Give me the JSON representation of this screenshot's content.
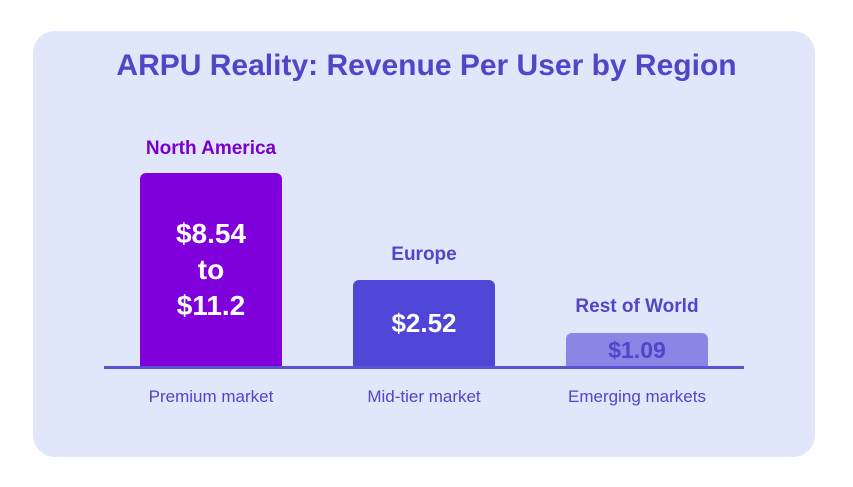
{
  "chart_data": {
    "type": "bar",
    "title": "ARPU Reality: Revenue Per User by Region",
    "categories": [
      "North America",
      "Europe",
      "Rest of World"
    ],
    "values": [
      11.2,
      2.52,
      1.09
    ],
    "ranges": [
      [
        8.54,
        11.2
      ],
      null,
      null
    ],
    "value_labels": {
      "na_line1": "$8.54",
      "na_line2": "to",
      "na_line3": "$11.2",
      "eu": "$2.52",
      "row": "$1.09"
    },
    "tiers": [
      "Premium market",
      "Mid-tier market",
      "Emerging markets"
    ],
    "grid": false,
    "legend": "none"
  },
  "colors": {
    "card_bg": "#e0e7fb",
    "title": "#4f46c8",
    "north_america": "#8000dc",
    "europe": "#4f46d8",
    "rest_of_world": "#8a86e6"
  }
}
